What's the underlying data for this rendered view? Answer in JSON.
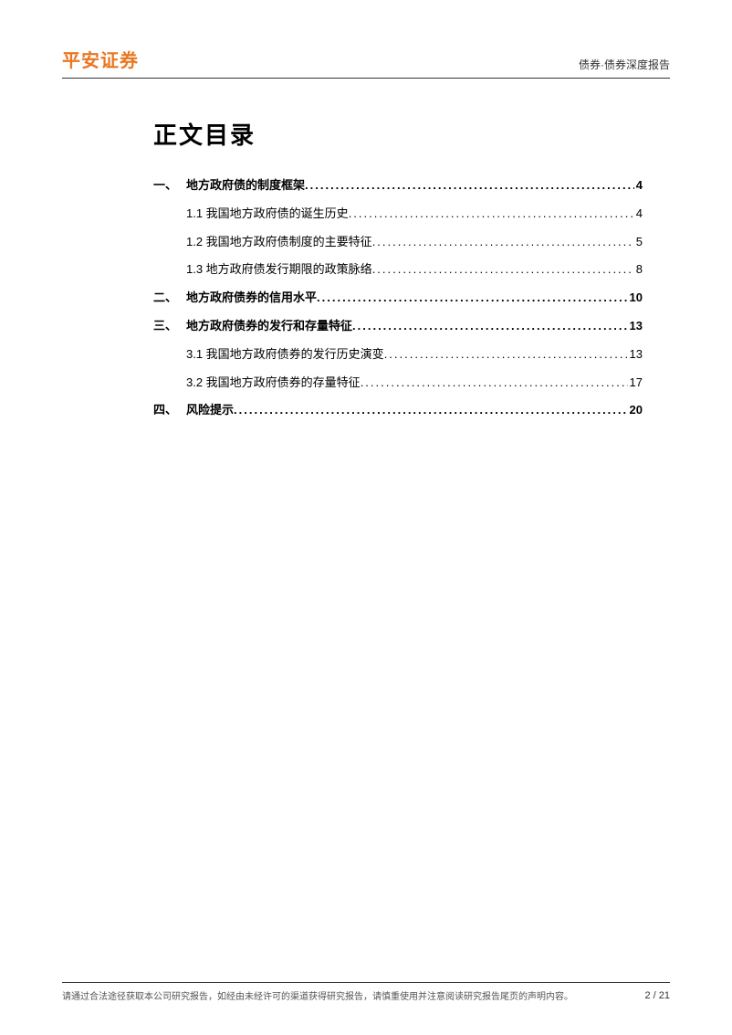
{
  "header": {
    "logo": "平安证券",
    "logo_color": "#e87722",
    "right": "债券·债券深度报告"
  },
  "title": "正文目录",
  "toc": [
    {
      "type": "section",
      "num": "一、",
      "label": "地方政府债的制度框架",
      "page": "4"
    },
    {
      "type": "sub",
      "num": "",
      "label": "1.1 我国地方政府债的诞生历史",
      "page": "4"
    },
    {
      "type": "sub",
      "num": "",
      "label": "1.2 我国地方政府债制度的主要特征",
      "page": "5"
    },
    {
      "type": "sub",
      "num": "",
      "label": "1.3 地方政府债发行期限的政策脉络",
      "page": "8"
    },
    {
      "type": "section",
      "num": "二、",
      "label": "地方政府债券的信用水平",
      "page": "10"
    },
    {
      "type": "section",
      "num": "三、",
      "label": "地方政府债券的发行和存量特征",
      "page": "13"
    },
    {
      "type": "sub",
      "num": "",
      "label": "3.1 我国地方政府债券的发行历史演变",
      "page": "13"
    },
    {
      "type": "sub",
      "num": "",
      "label": "3.2 我国地方政府债券的存量特征",
      "page": "17"
    },
    {
      "type": "section",
      "num": "四、",
      "label": "风险提示",
      "page": "20"
    }
  ],
  "footer": {
    "left": "请通过合法途径获取本公司研究报告，如经由未经许可的渠道获得研究报告，请慎重使用并注意阅读研究报告尾页的声明内容。",
    "right": "2 / 21"
  },
  "colors": {
    "background": "#ffffff",
    "text": "#000000",
    "accent": "#e87722",
    "rule": "#333333"
  }
}
